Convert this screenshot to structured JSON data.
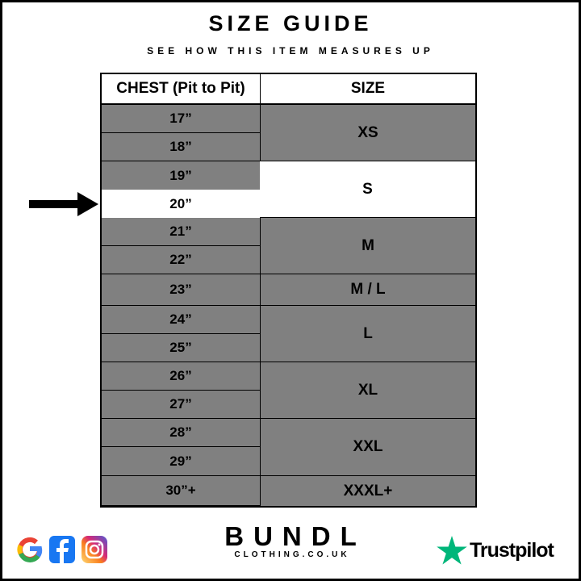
{
  "title": "SIZE GUIDE",
  "subtitle": "SEE HOW THIS ITEM MEASURES UP",
  "table": {
    "headers": [
      "CHEST (Pit to Pit)",
      "SIZE"
    ],
    "chest_rows": [
      "17”",
      "18”",
      "19”",
      "20”",
      "21”",
      "22”",
      "23”",
      "24”",
      "25”",
      "26”",
      "27”",
      "28”",
      "29”",
      "30”+"
    ],
    "highlighted_chest": "20”",
    "sizes": [
      {
        "label": "XS",
        "chest_from": "17”",
        "chest_to": "18”",
        "highlighted": false
      },
      {
        "label": "S",
        "chest_from": "19”",
        "chest_to": "20”",
        "highlighted": true
      },
      {
        "label": "M",
        "chest_from": "21”",
        "chest_to": "22”",
        "highlighted": false
      },
      {
        "label": "M / L",
        "chest_from": "23”",
        "chest_to": "23”",
        "highlighted": false
      },
      {
        "label": "L",
        "chest_from": "24”",
        "chest_to": "25”",
        "highlighted": false
      },
      {
        "label": "XL",
        "chest_from": "26”",
        "chest_to": "27”",
        "highlighted": false
      },
      {
        "label": "XXL",
        "chest_from": "28”",
        "chest_to": "29”",
        "highlighted": false
      },
      {
        "label": "XXXL+",
        "chest_from": "30”+",
        "chest_to": "30”+",
        "highlighted": false
      }
    ]
  },
  "colors": {
    "row": "#808080",
    "highlight": "#ffffff",
    "border": "#000000",
    "trustpilot": "#00b67a"
  },
  "brand": {
    "name": "BUNDL",
    "domain": "CLOTHING.CO.UK"
  },
  "social_icons": [
    "google-icon",
    "facebook-icon",
    "instagram-icon"
  ],
  "trustpilot": "Trustpilot"
}
